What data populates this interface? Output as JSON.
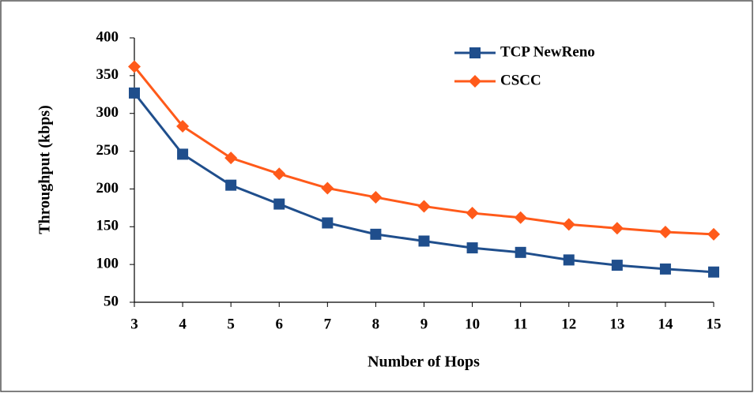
{
  "chart_data": {
    "type": "line",
    "xlabel": "Number of Hops",
    "ylabel": "Throughput (kbps)",
    "x": [
      3,
      4,
      5,
      6,
      7,
      8,
      9,
      10,
      11,
      12,
      13,
      14,
      15
    ],
    "series": [
      {
        "name": "TCP NewReno",
        "color": "#1f4e8c",
        "marker": "square",
        "values": [
          327,
          246,
          205,
          180,
          155,
          140,
          131,
          122,
          116,
          106,
          99,
          94,
          90
        ]
      },
      {
        "name": "CSCC",
        "color": "#ff5a1a",
        "marker": "diamond",
        "values": [
          362,
          283,
          241,
          220,
          201,
          189,
          177,
          168,
          162,
          153,
          148,
          143,
          140
        ]
      }
    ],
    "xlim": [
      3,
      15
    ],
    "xticks": [
      3,
      4,
      5,
      6,
      7,
      8,
      9,
      10,
      11,
      12,
      13,
      14,
      15
    ],
    "ylim": [
      50,
      400
    ],
    "yticks": [
      50,
      100,
      150,
      200,
      250,
      300,
      350,
      400
    ],
    "grid": false,
    "legend": "upper right"
  }
}
